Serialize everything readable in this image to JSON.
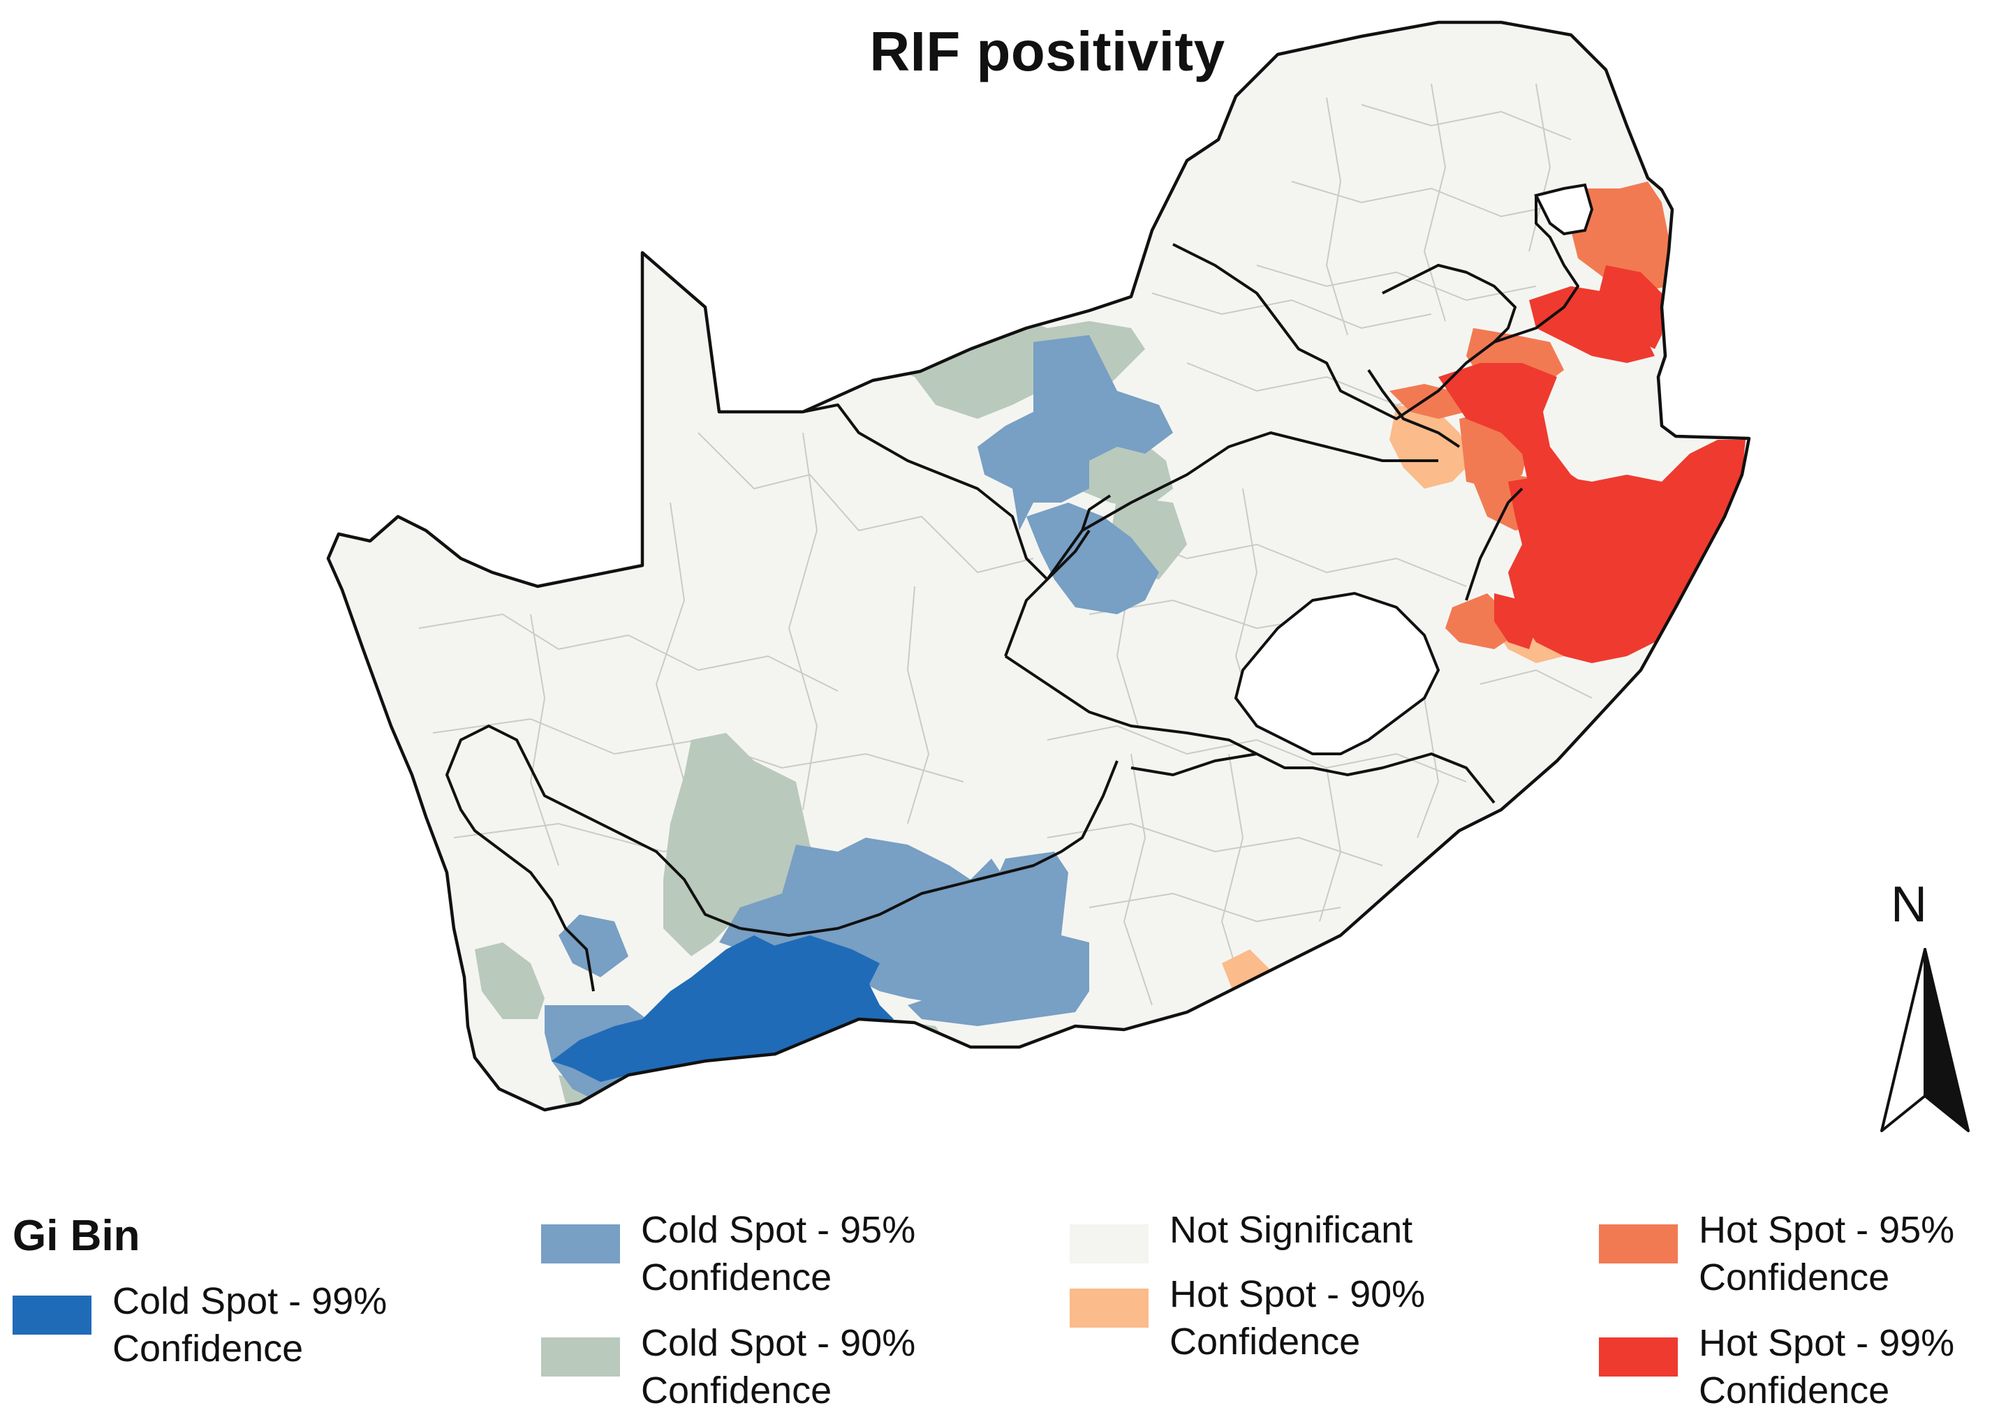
{
  "map_title": "RIF positivity",
  "legend": {
    "title": "Gi Bin",
    "items": [
      {
        "key": "cold99",
        "line1": "Cold Spot - 99%",
        "line2": "Confidence",
        "color": "#1f6bb8"
      },
      {
        "key": "cold95",
        "line1": "Cold Spot - 95%",
        "line2": "Confidence",
        "color": "#789fc4"
      },
      {
        "key": "cold90",
        "line1": "Cold Spot - 90%",
        "line2": "Confidence",
        "color": "#b9c9bc"
      },
      {
        "key": "notsig",
        "line1": "Not Significant",
        "line2": "",
        "color": "#f4f5f1"
      },
      {
        "key": "hot90",
        "line1": "Hot Spot - 90%",
        "line2": "Confidence",
        "color": "#fbbb8b"
      },
      {
        "key": "hot95",
        "line1": "Hot Spot - 95%",
        "line2": "Confidence",
        "color": "#f27a52"
      },
      {
        "key": "hot99",
        "line1": "Hot Spot - 99%",
        "line2": "Confidence",
        "color": "#ef3a2f"
      }
    ]
  },
  "north_arrow": {
    "label": "N"
  }
}
